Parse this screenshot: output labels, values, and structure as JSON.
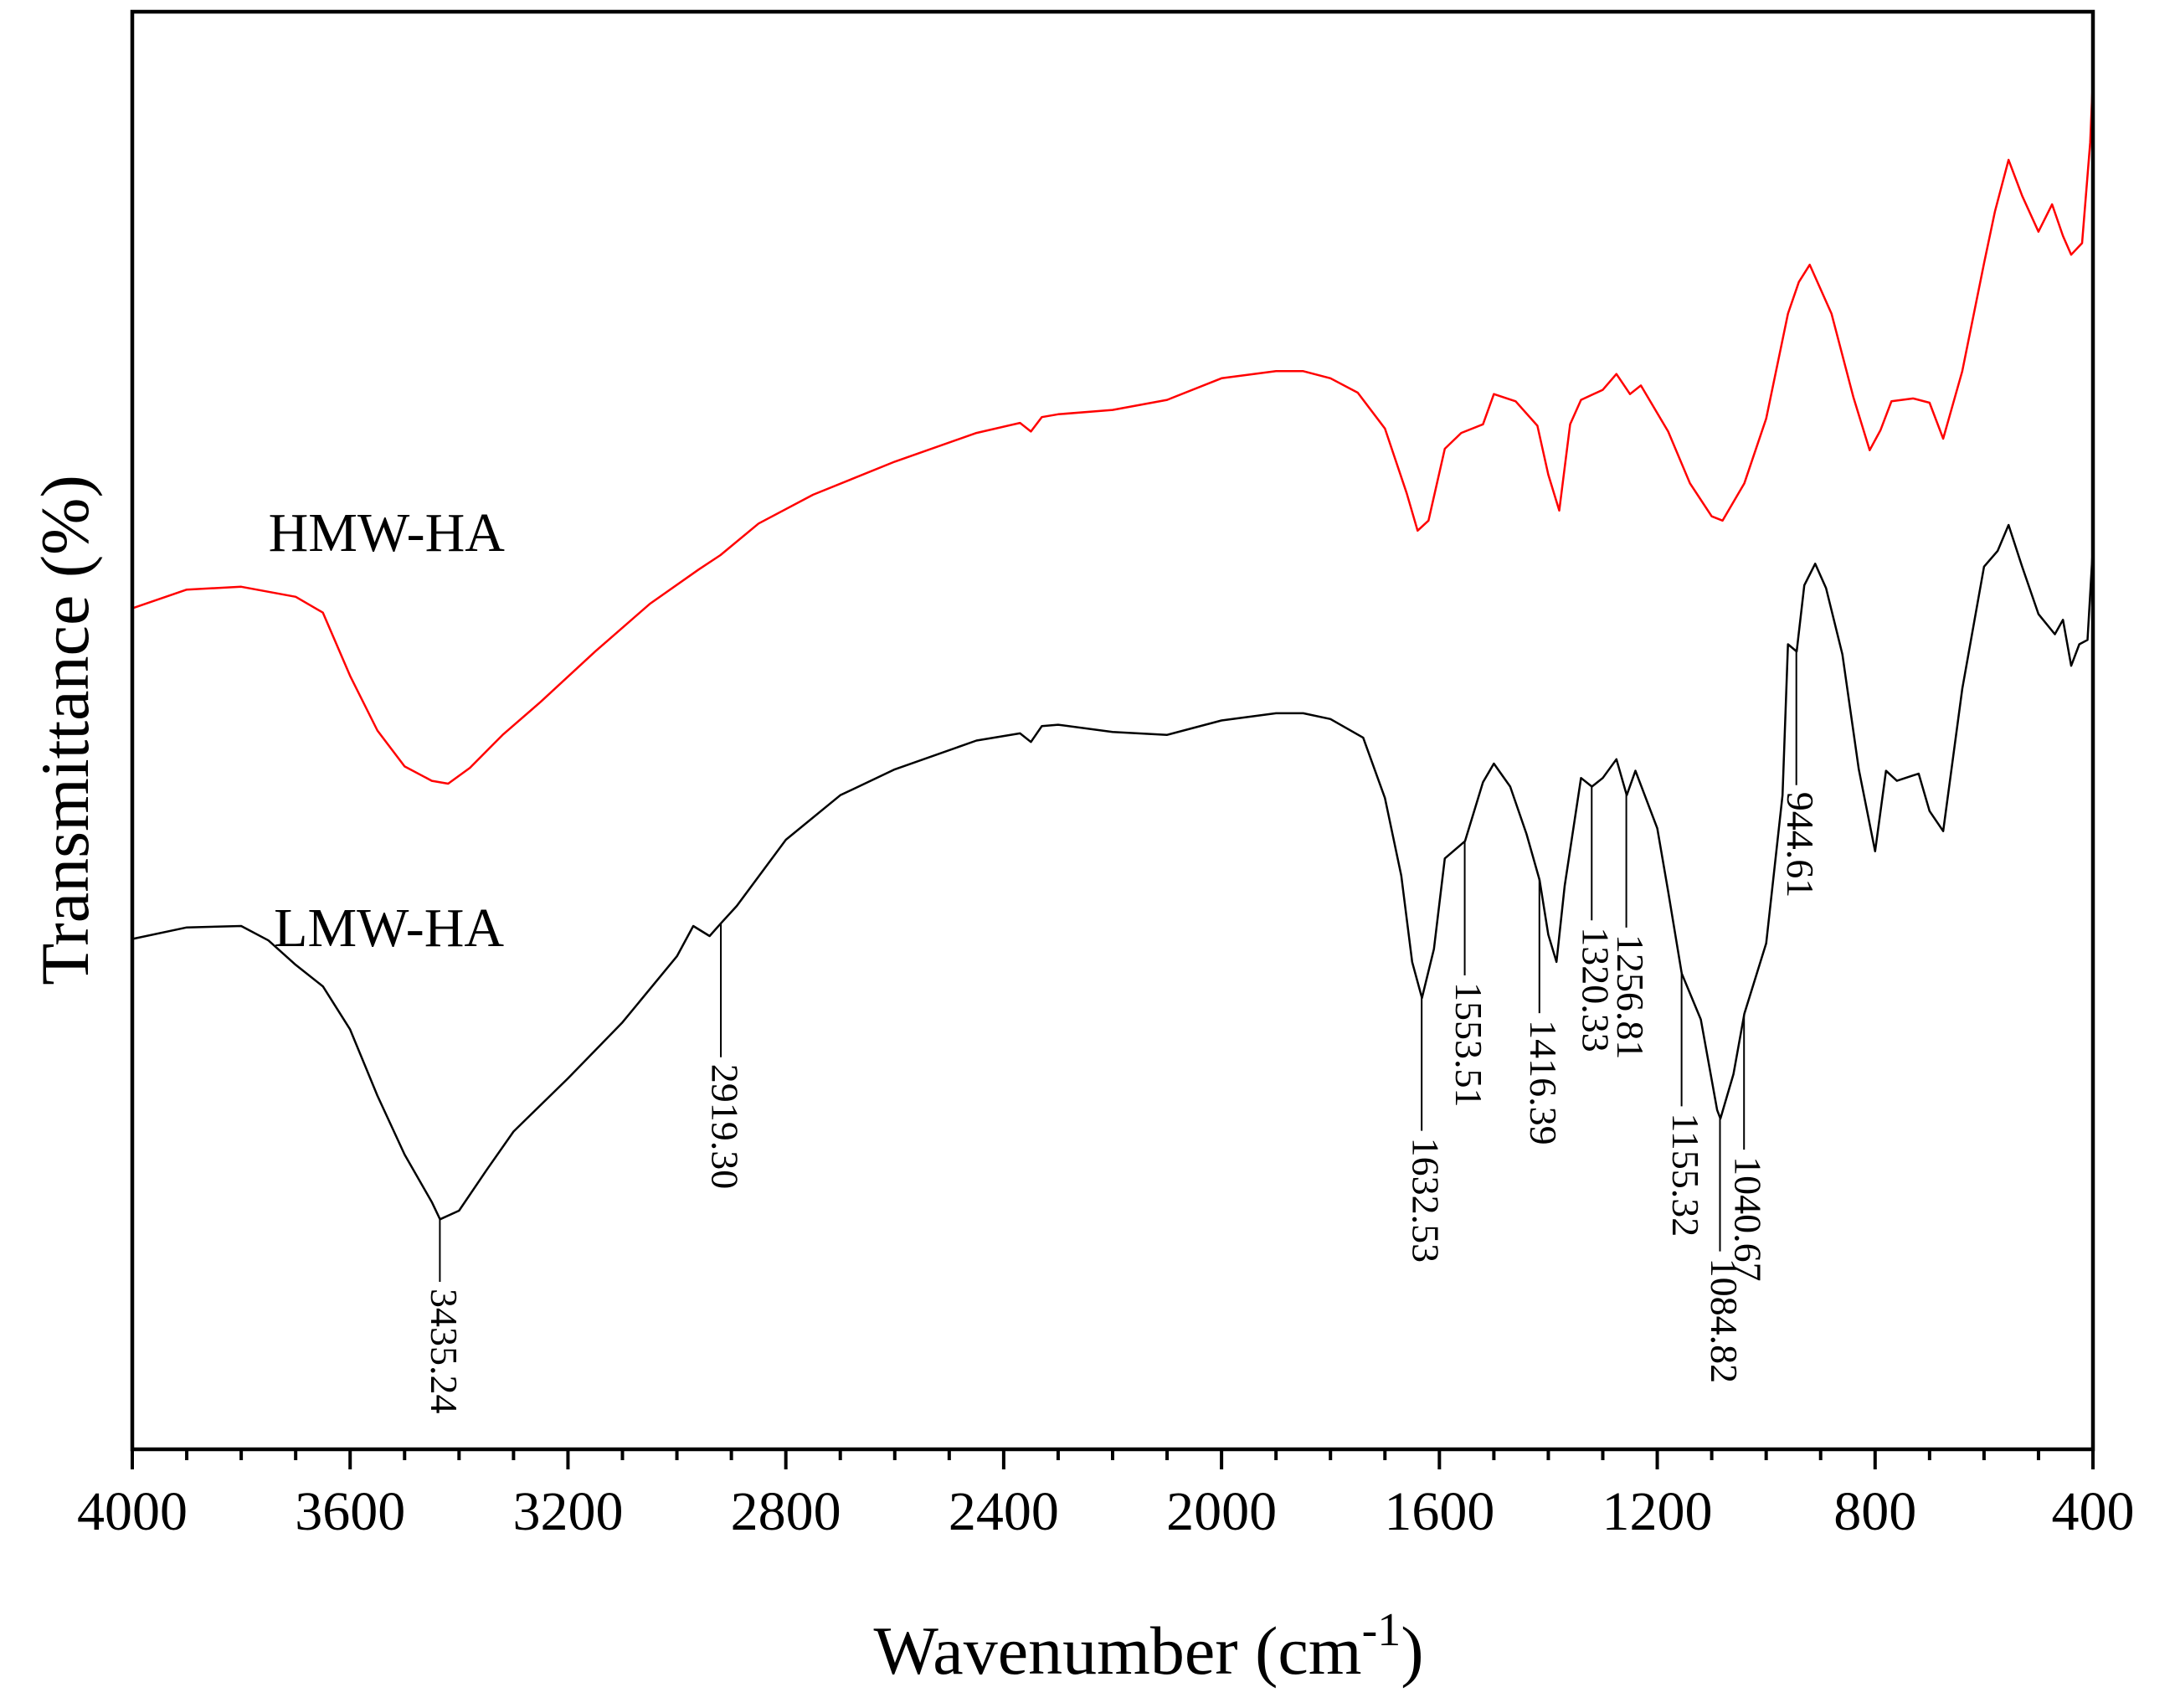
{
  "chart_data": {
    "type": "line",
    "title": "",
    "xlabel": "Wavenumber (cm",
    "xlabel_superscript": "-1",
    "xlabel_suffix": ")",
    "ylabel": "Transmittance (%)",
    "xlim": [
      4000,
      400
    ],
    "ylim": [
      0,
      100
    ],
    "x_reversed": true,
    "grid": false,
    "x_ticks": [
      4000,
      3600,
      3200,
      2800,
      2400,
      2000,
      1600,
      1200,
      800,
      400
    ],
    "x_tick_labels": [
      "4000",
      "3600",
      "3200",
      "2800",
      "2400",
      "2000",
      "1600",
      "1200",
      "800",
      "400"
    ],
    "series": [
      {
        "name": "HMW-HA",
        "color": "#ff0000",
        "points": [
          [
            4000,
            58.5
          ],
          [
            3900,
            59.8
          ],
          [
            3800,
            60
          ],
          [
            3700,
            59.3
          ],
          [
            3650,
            58.2
          ],
          [
            3600,
            53.8
          ],
          [
            3550,
            50
          ],
          [
            3500,
            47.5
          ],
          [
            3450,
            46.5
          ],
          [
            3420,
            46.3
          ],
          [
            3380,
            47.4
          ],
          [
            3320,
            49.7
          ],
          [
            3250,
            52
          ],
          [
            3150,
            55.5
          ],
          [
            3050,
            58.8
          ],
          [
            2960,
            61.2
          ],
          [
            2920,
            62.2
          ],
          [
            2850,
            64.4
          ],
          [
            2750,
            66.4
          ],
          [
            2600,
            68.7
          ],
          [
            2450,
            70.7
          ],
          [
            2370,
            71.4
          ],
          [
            2350,
            70.8
          ],
          [
            2330,
            71.8
          ],
          [
            2300,
            72
          ],
          [
            2200,
            72.3
          ],
          [
            2100,
            73
          ],
          [
            2000,
            74.5
          ],
          [
            1900,
            75
          ],
          [
            1850,
            75
          ],
          [
            1800,
            74.5
          ],
          [
            1750,
            73.5
          ],
          [
            1700,
            71
          ],
          [
            1660,
            66.5
          ],
          [
            1640,
            63.9
          ],
          [
            1620,
            64.6
          ],
          [
            1590,
            69.6
          ],
          [
            1560,
            70.7
          ],
          [
            1520,
            71.3
          ],
          [
            1500,
            73.4
          ],
          [
            1460,
            72.9
          ],
          [
            1420,
            71.2
          ],
          [
            1400,
            67.8
          ],
          [
            1380,
            65.3
          ],
          [
            1360,
            71.3
          ],
          [
            1340,
            73
          ],
          [
            1300,
            73.7
          ],
          [
            1275,
            74.8
          ],
          [
            1250,
            73.4
          ],
          [
            1230,
            74
          ],
          [
            1180,
            70.8
          ],
          [
            1140,
            67.2
          ],
          [
            1100,
            64.9
          ],
          [
            1080,
            64.6
          ],
          [
            1040,
            67.2
          ],
          [
            1000,
            71.7
          ],
          [
            960,
            79
          ],
          [
            940,
            81.2
          ],
          [
            920,
            82.4
          ],
          [
            880,
            79
          ],
          [
            840,
            73.2
          ],
          [
            810,
            69.5
          ],
          [
            790,
            70.9
          ],
          [
            770,
            72.9
          ],
          [
            730,
            73.1
          ],
          [
            700,
            72.8
          ],
          [
            675,
            70.3
          ],
          [
            640,
            75
          ],
          [
            600,
            82.5
          ],
          [
            580,
            86.1
          ],
          [
            555,
            89.7
          ],
          [
            530,
            87.2
          ],
          [
            500,
            84.7
          ],
          [
            475,
            86.6
          ],
          [
            455,
            84.4
          ],
          [
            440,
            83.1
          ],
          [
            420,
            83.9
          ],
          [
            405,
            90.9
          ],
          [
            400,
            95.4
          ]
        ]
      },
      {
        "name": "LMW-HA",
        "color": "#000000",
        "points": [
          [
            4000,
            35.5
          ],
          [
            3900,
            36.3
          ],
          [
            3800,
            36.4
          ],
          [
            3750,
            35.4
          ],
          [
            3700,
            33.7
          ],
          [
            3650,
            32.2
          ],
          [
            3600,
            29.2
          ],
          [
            3550,
            24.6
          ],
          [
            3500,
            20.5
          ],
          [
            3450,
            17.2
          ],
          [
            3435,
            16
          ],
          [
            3400,
            16.6
          ],
          [
            3350,
            19.4
          ],
          [
            3300,
            22.1
          ],
          [
            3200,
            25.8
          ],
          [
            3100,
            29.7
          ],
          [
            3000,
            34.3
          ],
          [
            2970,
            36.4
          ],
          [
            2940,
            35.7
          ],
          [
            2919,
            36.6
          ],
          [
            2890,
            37.8
          ],
          [
            2800,
            42.4
          ],
          [
            2700,
            45.5
          ],
          [
            2600,
            47.3
          ],
          [
            2450,
            49.3
          ],
          [
            2370,
            49.8
          ],
          [
            2350,
            49.2
          ],
          [
            2330,
            50.3
          ],
          [
            2300,
            50.4
          ],
          [
            2200,
            49.9
          ],
          [
            2100,
            49.7
          ],
          [
            2000,
            50.7
          ],
          [
            1900,
            51.2
          ],
          [
            1850,
            51.2
          ],
          [
            1800,
            50.8
          ],
          [
            1740,
            49.5
          ],
          [
            1700,
            45.3
          ],
          [
            1670,
            39.9
          ],
          [
            1650,
            33.9
          ],
          [
            1632,
            31.4
          ],
          [
            1610,
            34.8
          ],
          [
            1590,
            41.1
          ],
          [
            1553,
            42.3
          ],
          [
            1520,
            46.4
          ],
          [
            1500,
            47.7
          ],
          [
            1470,
            46.1
          ],
          [
            1440,
            42.8
          ],
          [
            1416,
            39.6
          ],
          [
            1400,
            35.8
          ],
          [
            1385,
            33.9
          ],
          [
            1370,
            39.2
          ],
          [
            1340,
            46.7
          ],
          [
            1320,
            46.1
          ],
          [
            1300,
            46.7
          ],
          [
            1275,
            48
          ],
          [
            1256,
            45.5
          ],
          [
            1240,
            47.2
          ],
          [
            1200,
            43.2
          ],
          [
            1180,
            38.8
          ],
          [
            1155,
            33.1
          ],
          [
            1120,
            29.9
          ],
          [
            1090,
            23.6
          ],
          [
            1084,
            23
          ],
          [
            1060,
            26.1
          ],
          [
            1040,
            30.3
          ],
          [
            1000,
            35.2
          ],
          [
            970,
            45.5
          ],
          [
            960,
            56
          ],
          [
            944,
            55.5
          ],
          [
            930,
            60.1
          ],
          [
            910,
            61.6
          ],
          [
            890,
            59.9
          ],
          [
            860,
            55.3
          ],
          [
            830,
            47.3
          ],
          [
            800,
            41.6
          ],
          [
            780,
            47.2
          ],
          [
            760,
            46.5
          ],
          [
            720,
            47
          ],
          [
            700,
            44.4
          ],
          [
            675,
            43
          ],
          [
            640,
            52.9
          ],
          [
            600,
            61.4
          ],
          [
            575,
            62.5
          ],
          [
            555,
            64.3
          ],
          [
            530,
            61.4
          ],
          [
            500,
            58.1
          ],
          [
            470,
            56.7
          ],
          [
            455,
            57.7
          ],
          [
            440,
            54.5
          ],
          [
            425,
            56
          ],
          [
            410,
            56.3
          ],
          [
            400,
            62.8
          ]
        ]
      }
    ],
    "series_labels": [
      {
        "text": "HMW-HA",
        "x": 3750,
        "y": 62.5
      },
      {
        "text": "LMW-HA",
        "x": 3740,
        "y": 35
      }
    ],
    "annotations": [
      {
        "series": "LMW-HA",
        "x": 3435.24,
        "text": "3435.24"
      },
      {
        "series": "LMW-HA",
        "x": 2919.3,
        "text": "2919.30"
      },
      {
        "series": "LMW-HA",
        "x": 1632.53,
        "text": "1632.53"
      },
      {
        "series": "LMW-HA",
        "x": 1553.51,
        "text": "1553.51"
      },
      {
        "series": "LMW-HA",
        "x": 1416.39,
        "text": "1416.39"
      },
      {
        "series": "LMW-HA",
        "x": 1320.33,
        "text": "1320.33"
      },
      {
        "series": "LMW-HA",
        "x": 1256.81,
        "text": "1256.81"
      },
      {
        "series": "LMW-HA",
        "x": 1155.32,
        "text": "1155.32"
      },
      {
        "series": "LMW-HA",
        "x": 1084.82,
        "text": "1084.82"
      },
      {
        "series": "LMW-HA",
        "x": 1040.67,
        "text": "1040.67"
      },
      {
        "series": "LMW-HA",
        "x": 944.61,
        "text": "944.61"
      }
    ]
  }
}
